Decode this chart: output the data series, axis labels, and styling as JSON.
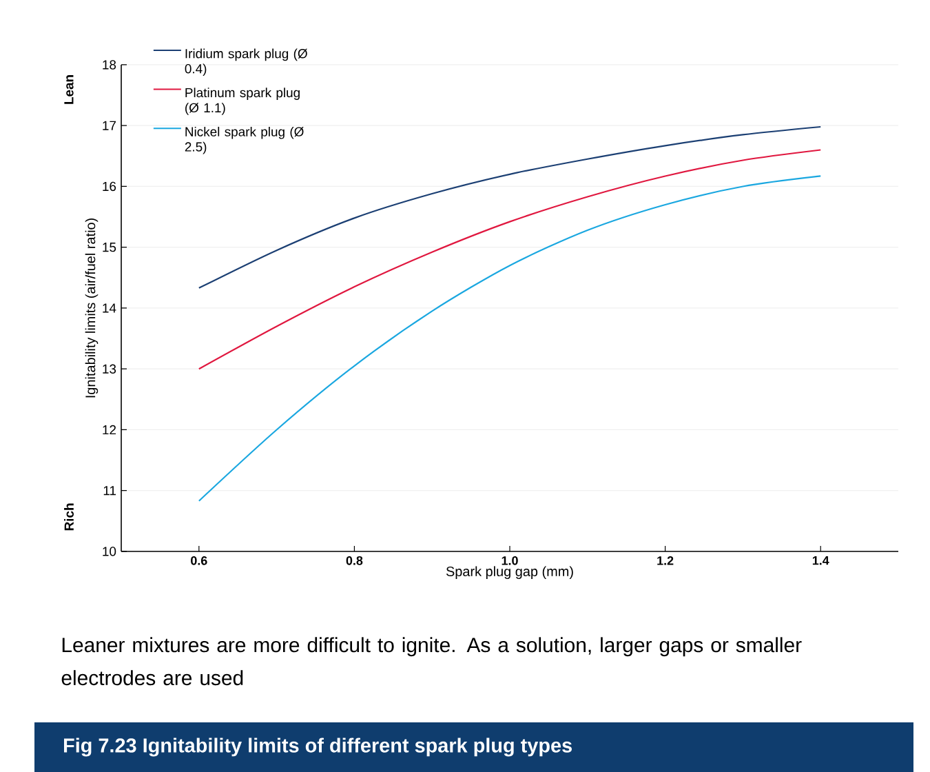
{
  "chart_data": {
    "type": "line",
    "title": "Fig 7.23  Ignitability limits of different spark plug types",
    "xlabel": "Spark plug gap (mm)",
    "ylabel": "Ignitability limits (air/fuel ratio)",
    "annotations": [
      "Lean",
      "Rich",
      "Leaner mixtures are more difficult to ignite. As a solution, larger gaps or smaller electrodes are used"
    ],
    "x": [
      0.6,
      0.7,
      0.8,
      0.9,
      1.0,
      1.1,
      1.2,
      1.3,
      1.4
    ],
    "series": [
      {
        "name": "Iridium spark plug (Ø 0.4)",
        "color": "#1b3f73",
        "values": [
          14.33,
          14.95,
          15.48,
          15.88,
          16.2,
          16.45,
          16.67,
          16.85,
          16.98
        ]
      },
      {
        "name": "Platinum spark plug (Ø 1.1)",
        "color": "#e0173f",
        "values": [
          13.0,
          13.7,
          14.35,
          14.92,
          15.42,
          15.83,
          16.17,
          16.43,
          16.6
        ]
      },
      {
        "name": "Nickel spark plug (Ø 2.5)",
        "color": "#1aa7e0",
        "values": [
          10.83,
          12.0,
          13.05,
          13.95,
          14.7,
          15.28,
          15.7,
          16.0,
          16.17
        ]
      }
    ],
    "xlim": [
      0.5,
      1.5
    ],
    "ylim": [
      10,
      18
    ],
    "xticks": [
      0.6,
      0.8,
      {
        "value": 1.0,
        "label": "1.0"
      },
      1.2,
      1.4
    ],
    "yticks": [
      10,
      11,
      12,
      13,
      14,
      15,
      16,
      17,
      18
    ],
    "grid": "y",
    "legend": "top left"
  }
}
